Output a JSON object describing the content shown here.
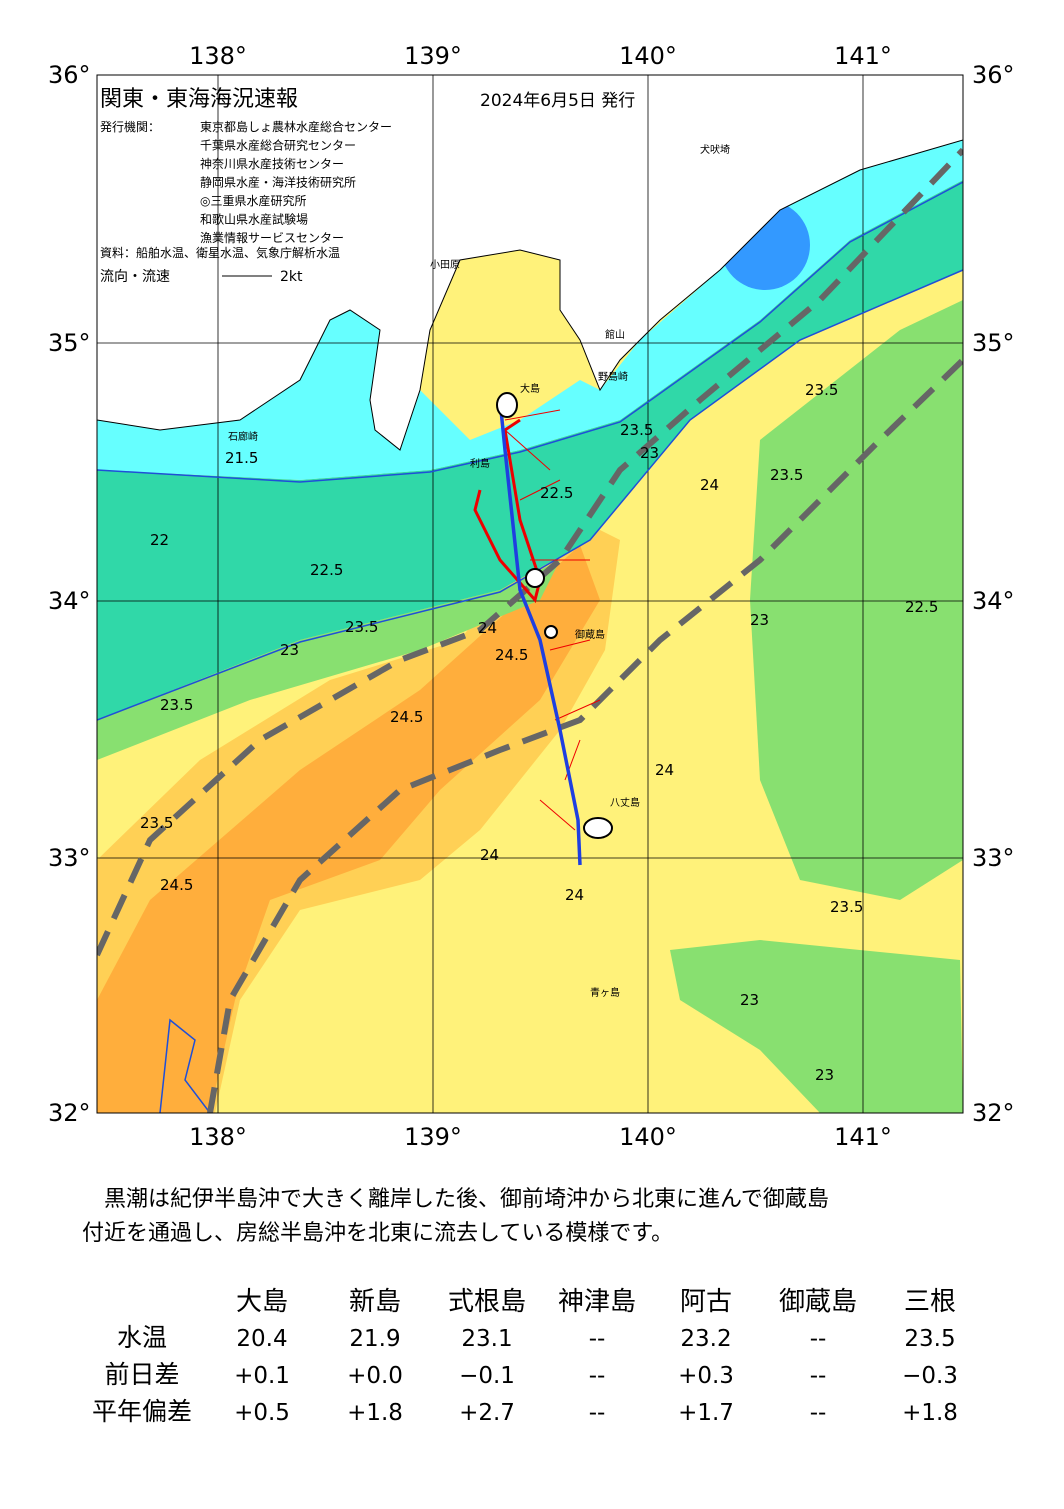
{
  "map": {
    "title": "関東・東海海況速報",
    "date": "2024年6月5日 発行",
    "issuer_label": "発行機関：",
    "issuers": [
      "東京都島しょ農林水産総合センター",
      "千葉県水産総合研究センター",
      "神奈川県水産技術センター",
      "静岡県水産・海洋技術研究所",
      "◎三重県水産研究所",
      "和歌山県水産試験場",
      "漁業情報サービスセンター"
    ],
    "source": "資料：船舶水温、衛星水温、気象庁解析水温",
    "current_label": "流向・流速",
    "current_scale": "2kt",
    "lon_labels": [
      "138°",
      "139°",
      "140°",
      "141°"
    ],
    "lat_labels": [
      "36°",
      "35°",
      "34°",
      "33°",
      "32°"
    ],
    "place_names": [
      "大島",
      "利島",
      "御蔵島",
      "八丈島",
      "青ヶ島",
      "犬吠埼",
      "館山",
      "野島崎",
      "石廊崎",
      "小田原"
    ],
    "contour_labels": [
      "21.5",
      "22",
      "22.5",
      "23",
      "23.5",
      "24",
      "24.5",
      "22.5",
      "23",
      "23.5",
      "24",
      "24.5",
      "23.5",
      "24",
      "23.5",
      "23",
      "23.5",
      "23",
      "24",
      "24.5",
      "23.5",
      "22.5",
      "23.5",
      "24",
      "23"
    ]
  },
  "paragraph": {
    "lines": [
      "　黒潮は紀伊半島沖で大きく離岸した後、御前埼沖から北東に進んで御蔵島",
      "付近を通過し、房総半島沖を北東に流去している模様です。"
    ]
  },
  "table": {
    "columns": [
      "大島",
      "新島",
      "式根島",
      "神津島",
      "阿古",
      "御蔵島",
      "三根"
    ],
    "rows": [
      {
        "label": "水温",
        "values": [
          "20.4",
          "21.9",
          "23.1",
          "--",
          "23.2",
          "--",
          "23.5"
        ]
      },
      {
        "label": "前日差",
        "values": [
          "+0.1",
          "+0.0",
          "−0.1",
          "--",
          "+0.3",
          "--",
          "−0.3"
        ]
      },
      {
        "label": "平年偏差",
        "values": [
          "+0.5",
          "+1.8",
          "+2.7",
          "--",
          "+1.7",
          "--",
          "+1.8"
        ]
      }
    ]
  }
}
